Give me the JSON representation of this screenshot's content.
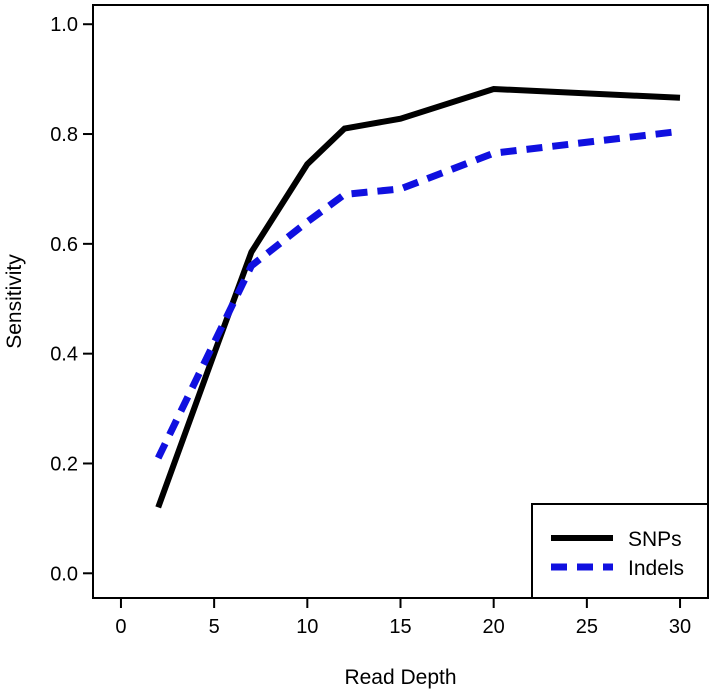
{
  "chart_data": {
    "type": "line",
    "xlabel": "Read Depth",
    "ylabel": "Sensitivity",
    "xlim": [
      -1.5,
      31.5
    ],
    "ylim": [
      -0.045,
      1.035
    ],
    "xticks": [
      0,
      5,
      10,
      15,
      20,
      25,
      30
    ],
    "yticks": [
      0.0,
      0.2,
      0.4,
      0.6,
      0.8,
      1.0
    ],
    "xtick_labels": [
      "0",
      "5",
      "10",
      "15",
      "20",
      "25",
      "30"
    ],
    "ytick_labels": [
      "0.0",
      "0.2",
      "0.4",
      "0.6",
      "0.8",
      "1.0"
    ],
    "grid": false,
    "legend_position": "bottom-right",
    "series": [
      {
        "name": "SNPs",
        "color": "#000000",
        "style": "solid",
        "x": [
          2,
          5,
          7,
          10,
          12,
          15,
          20,
          30
        ],
        "y": [
          0.12,
          0.4,
          0.585,
          0.745,
          0.81,
          0.828,
          0.882,
          0.866
        ]
      },
      {
        "name": "Indels",
        "color": "#1010e0",
        "style": "dashed",
        "x": [
          2,
          5,
          7,
          10,
          12,
          15,
          20,
          30
        ],
        "y": [
          0.21,
          0.42,
          0.56,
          0.64,
          0.69,
          0.7,
          0.765,
          0.805
        ]
      }
    ]
  }
}
